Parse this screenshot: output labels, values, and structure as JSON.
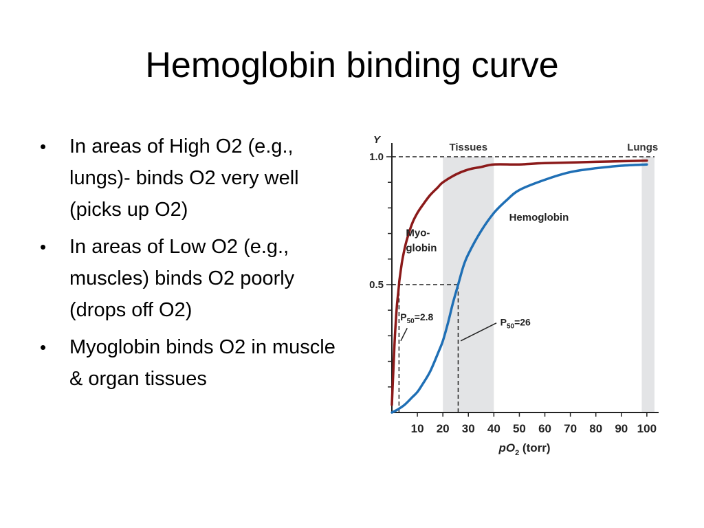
{
  "slide": {
    "title": "Hemoglobin binding curve",
    "bullets": [
      "In areas of High O2 (e.g., lungs)- binds O2 very well (picks up O2)",
      "In areas of Low O2 (e.g., muscles) binds O2 poorly (drops off O2)",
      "Myoglobin binds O2 in muscle & organ tissues"
    ]
  },
  "chart_data": {
    "type": "line",
    "ylabel": "Y",
    "xlabel_main": "pO",
    "xlabel_sub": "2",
    "xlabel_unit": "(torr)",
    "xlim": [
      0,
      103
    ],
    "ylim": [
      0,
      1.0
    ],
    "x_ticks": [
      "10",
      "20",
      "30",
      "40",
      "50",
      "60",
      "70",
      "80",
      "90",
      "100"
    ],
    "x_tick_values": [
      10,
      20,
      30,
      40,
      50,
      60,
      70,
      80,
      90,
      100
    ],
    "y_tick_labels": [
      {
        "value": 0.5,
        "label": "0.5"
      },
      {
        "value": 1.0,
        "label": "1.0"
      }
    ],
    "y_minor_ticks": [
      0.1,
      0.2,
      0.3,
      0.4,
      0.6,
      0.7,
      0.8,
      0.9
    ],
    "regions": [
      {
        "label": "Tissues",
        "from": 20,
        "to": 40,
        "color": "#e3e4e6"
      },
      {
        "label": "Lungs",
        "from": 98,
        "to": 103,
        "color": "#e3e4e6"
      }
    ],
    "series": [
      {
        "name": "Myo-globin",
        "label_lines": [
          "Myo-",
          "globin"
        ],
        "color": "#8b1a1a",
        "x": [
          0,
          0.5,
          1,
          1.5,
          2,
          2.5,
          2.8,
          3,
          4,
          5,
          6,
          8,
          10,
          12,
          15,
          18,
          20,
          25,
          30,
          35,
          40,
          50,
          60,
          80,
          100
        ],
        "y": [
          0.03,
          0.15,
          0.26,
          0.35,
          0.42,
          0.47,
          0.5,
          0.52,
          0.59,
          0.64,
          0.68,
          0.74,
          0.78,
          0.81,
          0.85,
          0.88,
          0.9,
          0.93,
          0.95,
          0.96,
          0.97,
          0.97,
          0.975,
          0.98,
          0.985
        ]
      },
      {
        "name": "Hemoglobin",
        "label_lines": [
          "Hemoglobin"
        ],
        "color": "#1f6fb5",
        "x": [
          0,
          2,
          5,
          8,
          10,
          12,
          15,
          18,
          20,
          22,
          24,
          26,
          28,
          30,
          35,
          40,
          45,
          50,
          60,
          70,
          80,
          90,
          100
        ],
        "y": [
          0.0,
          0.01,
          0.03,
          0.06,
          0.08,
          0.11,
          0.16,
          0.23,
          0.28,
          0.35,
          0.43,
          0.5,
          0.57,
          0.62,
          0.71,
          0.78,
          0.83,
          0.87,
          0.91,
          0.94,
          0.955,
          0.965,
          0.97
        ]
      }
    ],
    "annotations": [
      {
        "name": "p50-myoglobin",
        "prefix": "P",
        "sub": "50",
        "text": "=2.8",
        "x": 2.8,
        "y": 0.5
      },
      {
        "name": "p50-hemoglobin",
        "prefix": "P",
        "sub": "50",
        "text": "=26",
        "x": 26,
        "y": 0.5
      }
    ]
  }
}
